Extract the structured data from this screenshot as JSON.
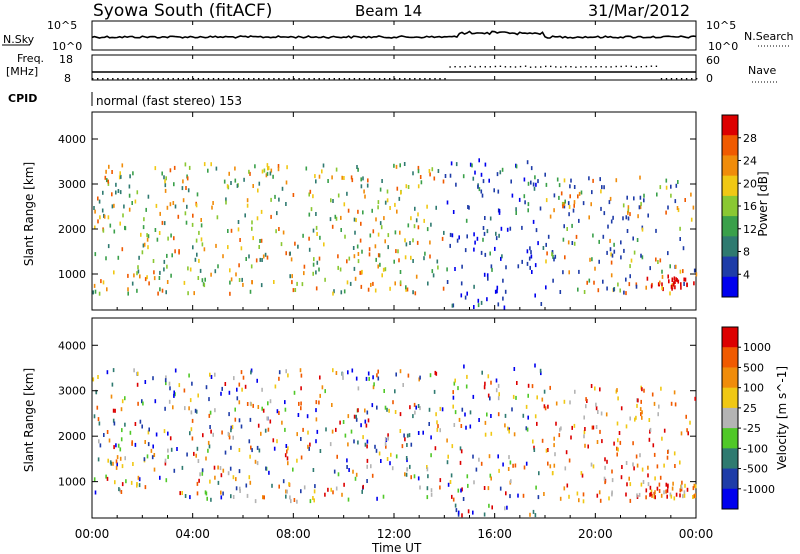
{
  "header": {
    "station": "Syowa South (fitACF)",
    "beam": "Beam 14",
    "date": "31/Mar/2012"
  },
  "strip_labels": {
    "nsky": "N.Sky",
    "nsky_tick_top": "10^5",
    "nsky_tick_bottom": "10^0",
    "nsearch": "N.Search",
    "nsearch_tick_top": "10^5",
    "nsearch_tick_bottom": "10^0",
    "freq": "Freq.",
    "freq_unit": "[MHz]",
    "freq_tick_top": "18",
    "freq_tick_bottom": "8",
    "nave": "Nave",
    "nave_tick_top": "60",
    "nave_tick_bottom": "0",
    "cpid": "CPID",
    "cpid_text": "normal (fast stereo) 153"
  },
  "colors": {
    "power_scale": [
      "#0000ee",
      "#1e3ca8",
      "#2f7a70",
      "#3aa04a",
      "#8ac832",
      "#f0c814",
      "#f08c0a",
      "#f05a00",
      "#dc0000"
    ],
    "velocity_scale": [
      "#0000ee",
      "#1e3ca8",
      "#2f7a70",
      "#50c828",
      "#b4b4b4",
      "#f0c814",
      "#f08c0a",
      "#f05a00",
      "#dc0000"
    ]
  },
  "chart_data": [
    {
      "type": "heatmap",
      "name": "power",
      "ylabel": "Slant Range [km]",
      "ylim": [
        200,
        4600
      ],
      "yticks": [
        "1000",
        "2000",
        "3000",
        "4000"
      ],
      "colorbar_label": "Power [dB]",
      "colorbar_ticks": [
        "4",
        "8",
        "12",
        "16",
        "20",
        "24",
        "28"
      ],
      "colorbar_range": [
        0,
        32
      ]
    },
    {
      "type": "heatmap",
      "name": "velocity",
      "ylabel": "Slant Range [km]",
      "ylim": [
        200,
        4600
      ],
      "yticks": [
        "1000",
        "2000",
        "3000",
        "4000"
      ],
      "colorbar_label": "Velocity [m s^-1]",
      "colorbar_ticks": [
        "1000",
        "500",
        "100",
        "25",
        "-25",
        "-100",
        "-500",
        "-1000"
      ]
    }
  ],
  "x_axis": {
    "label": "Time UT",
    "ticks": [
      "00:00",
      "04:00",
      "08:00",
      "12:00",
      "16:00",
      "20:00",
      "00:00"
    ],
    "xlim": [
      0,
      24
    ]
  }
}
